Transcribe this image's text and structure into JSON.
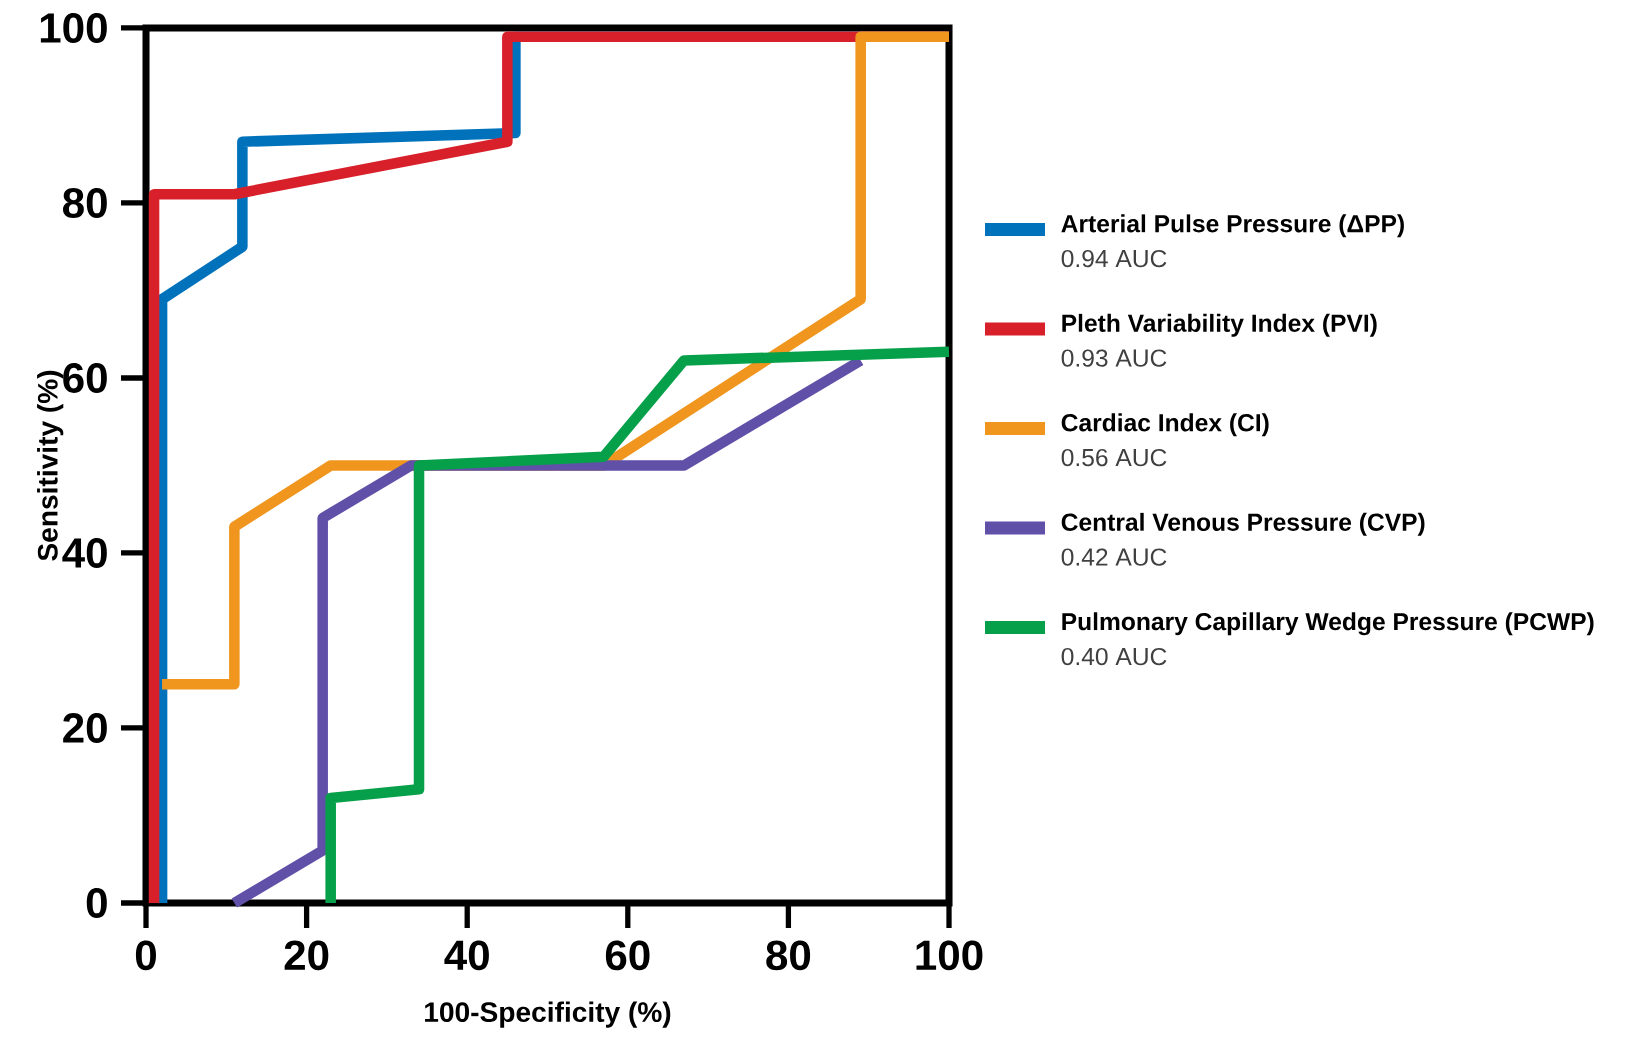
{
  "chart_data": {
    "type": "line",
    "xlabel": "100-Specificity (%)",
    "ylabel": "Sensitivity (%)",
    "xlim": [
      0,
      100
    ],
    "ylim": [
      0,
      100
    ],
    "xticks": [
      0,
      20,
      40,
      60,
      80,
      100
    ],
    "yticks": [
      0,
      20,
      40,
      60,
      80,
      100
    ],
    "legend": "right",
    "marker": "none",
    "line_style": "solid",
    "annotations": [
      "0.94 AUC",
      "0.93 AUC",
      "0.56 AUC",
      "0.42 AUC",
      "0.40 AUC"
    ],
    "series": [
      {
        "name": "Arterial Pulse Pressure (ΔPP)",
        "color": "#0072bc",
        "x": [
          2,
          2,
          12,
          12,
          46,
          46,
          100
        ],
        "values": [
          0,
          69,
          75,
          87,
          88,
          99,
          99
        ]
      },
      {
        "name": "Pleth Variability Index (PVI)",
        "color": "#d7202a",
        "x": [
          1,
          1,
          11,
          45,
          45,
          100
        ],
        "values": [
          0,
          81,
          81,
          87,
          99,
          99
        ]
      },
      {
        "name": "Cardiac Index (CI)",
        "color": "#f0961e",
        "x": [
          2,
          11,
          11,
          23,
          33,
          57,
          89,
          89,
          100
        ],
        "values": [
          25,
          25,
          43,
          50,
          50,
          50,
          69,
          99,
          99
        ]
      },
      {
        "name": "Central Venous Pressure (CVP)",
        "color": "#6150a8",
        "x": [
          11,
          22,
          22,
          33,
          67,
          89
        ],
        "values": [
          0,
          6,
          44,
          50,
          50,
          62
        ]
      },
      {
        "name": "Pulmonary Capillary Wedge Pressure (PCWP)",
        "color": "#07a04a",
        "x": [
          23,
          23,
          34,
          34,
          57,
          67,
          100
        ],
        "values": [
          0,
          12,
          13,
          50,
          51,
          62,
          63
        ]
      }
    ]
  }
}
